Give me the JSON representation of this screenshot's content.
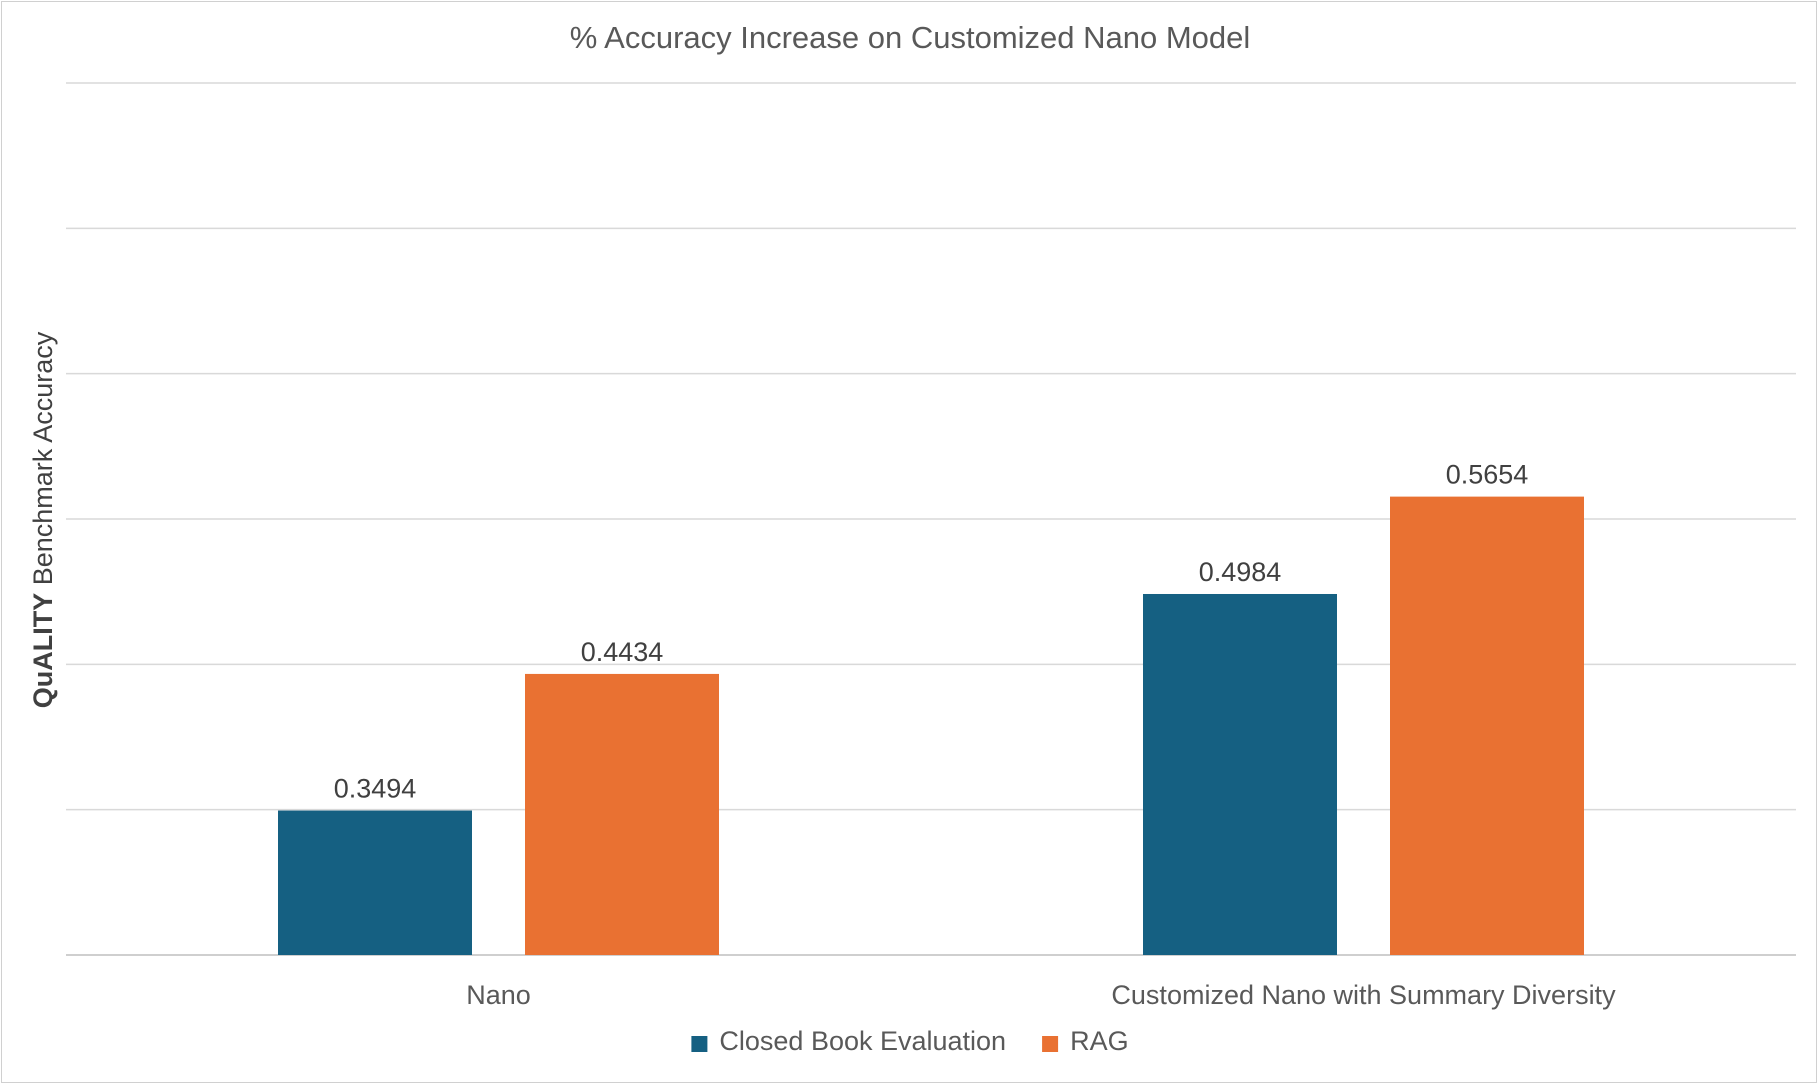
{
  "chart_data": {
    "type": "bar",
    "title": "% Accuracy Increase on Customized Nano Model",
    "xlabel": "",
    "ylabel_bold": "QuALITY",
    "ylabel_rest": " Benchmark Accuracy",
    "categories": [
      "Nano",
      "Customized Nano with Summary Diversity"
    ],
    "series": [
      {
        "name": "Closed Book Evaluation",
        "color": "#156082",
        "values": [
          0.3494,
          0.4984
        ]
      },
      {
        "name": "RAG",
        "color": "#E97132",
        "values": [
          0.4434,
          0.5654
        ]
      }
    ],
    "ylim": [
      0.25,
      0.85
    ],
    "gridlines": [
      0.25,
      0.35,
      0.45,
      0.55,
      0.65,
      0.75,
      0.85
    ],
    "grid": true,
    "legend": "bottom"
  }
}
